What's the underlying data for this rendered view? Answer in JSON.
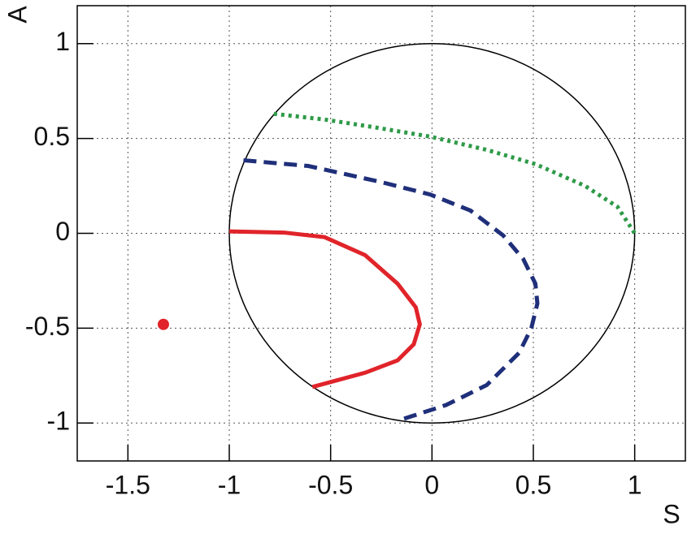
{
  "chart_data": {
    "type": "line",
    "x_label": "S",
    "y_label": "A",
    "xlim": [
      -1.75,
      1.25
    ],
    "ylim": [
      -1.2,
      1.2
    ],
    "xticks": [
      -1.5,
      -1,
      -0.5,
      0,
      0.5,
      1
    ],
    "yticks": [
      -1,
      -0.5,
      0,
      0.5,
      1
    ],
    "grid": true,
    "circle": {
      "center": [
        0,
        0
      ],
      "radius": 1,
      "color": "#000000"
    },
    "series": [
      {
        "color": "#e0242a",
        "style": "solid",
        "x": [
          -1,
          -0.73,
          -0.53,
          -0.33,
          -0.17,
          -0.08,
          -0.06,
          -0.09,
          -0.17,
          -0.33,
          -0.59
        ],
        "values": [
          0.01,
          0.004,
          -0.02,
          -0.115,
          -0.265,
          -0.39,
          -0.48,
          -0.585,
          -0.67,
          -0.735,
          -0.81
        ]
      },
      {
        "color": "#1f2f7a",
        "style": "dashed",
        "x": [
          -0.93,
          -0.61,
          -0.25,
          -0.01,
          0.19,
          0.35,
          0.45,
          0.51,
          0.52,
          0.49,
          0.43,
          0.27,
          0.07,
          -0.16
        ],
        "values": [
          0.385,
          0.355,
          0.27,
          0.205,
          0.12,
          -0.01,
          -0.135,
          -0.265,
          -0.37,
          -0.5,
          -0.63,
          -0.8,
          -0.905,
          -0.985
        ]
      },
      {
        "color": "#2e9a48",
        "style": "dotted",
        "x": [
          -0.78,
          -0.53,
          -0.29,
          -0.01,
          0.27,
          0.51,
          0.755,
          0.915,
          1.0
        ],
        "values": [
          0.63,
          0.6,
          0.56,
          0.51,
          0.44,
          0.365,
          0.25,
          0.14,
          0
        ]
      }
    ],
    "point": {
      "x": -1.325,
      "y": -0.48,
      "color": "#e0242a"
    }
  }
}
